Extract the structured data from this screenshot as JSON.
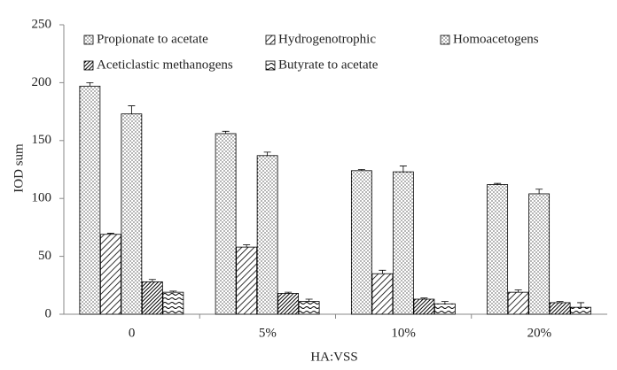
{
  "chart_data": {
    "type": "bar",
    "x_label": "HA:VSS",
    "y_label": "IOD sum",
    "categories": [
      "0",
      "5%",
      "10%",
      "20%"
    ],
    "series": [
      {
        "name": "Propionate to acetate",
        "color": "#000000",
        "pattern": "dots",
        "values": [
          197,
          156,
          124,
          112
        ],
        "errors": [
          3,
          2,
          1,
          1
        ]
      },
      {
        "name": "Hydrogenotrophic",
        "color": "#000000",
        "pattern": "hatch",
        "values": [
          69,
          58,
          35,
          19
        ],
        "errors": [
          1,
          2,
          3,
          2
        ]
      },
      {
        "name": "Homoacetogens",
        "color": "#000000",
        "pattern": "dots",
        "values": [
          173,
          137,
          123,
          104
        ],
        "errors": [
          7,
          3,
          5,
          4
        ]
      },
      {
        "name": "Aceticlastic methanogens",
        "color": "#000000",
        "pattern": "dense-hatch",
        "values": [
          28,
          18,
          13,
          10
        ],
        "errors": [
          2,
          1,
          1,
          1
        ]
      },
      {
        "name": "Butyrate to acetate",
        "color": "#000000",
        "pattern": "waves",
        "values": [
          19,
          11,
          9,
          6
        ],
        "errors": [
          1,
          2,
          2,
          4
        ]
      }
    ],
    "ylim": [
      0,
      250
    ],
    "yticks": [
      0,
      50,
      100,
      150,
      200,
      250
    ],
    "grid": false
  }
}
